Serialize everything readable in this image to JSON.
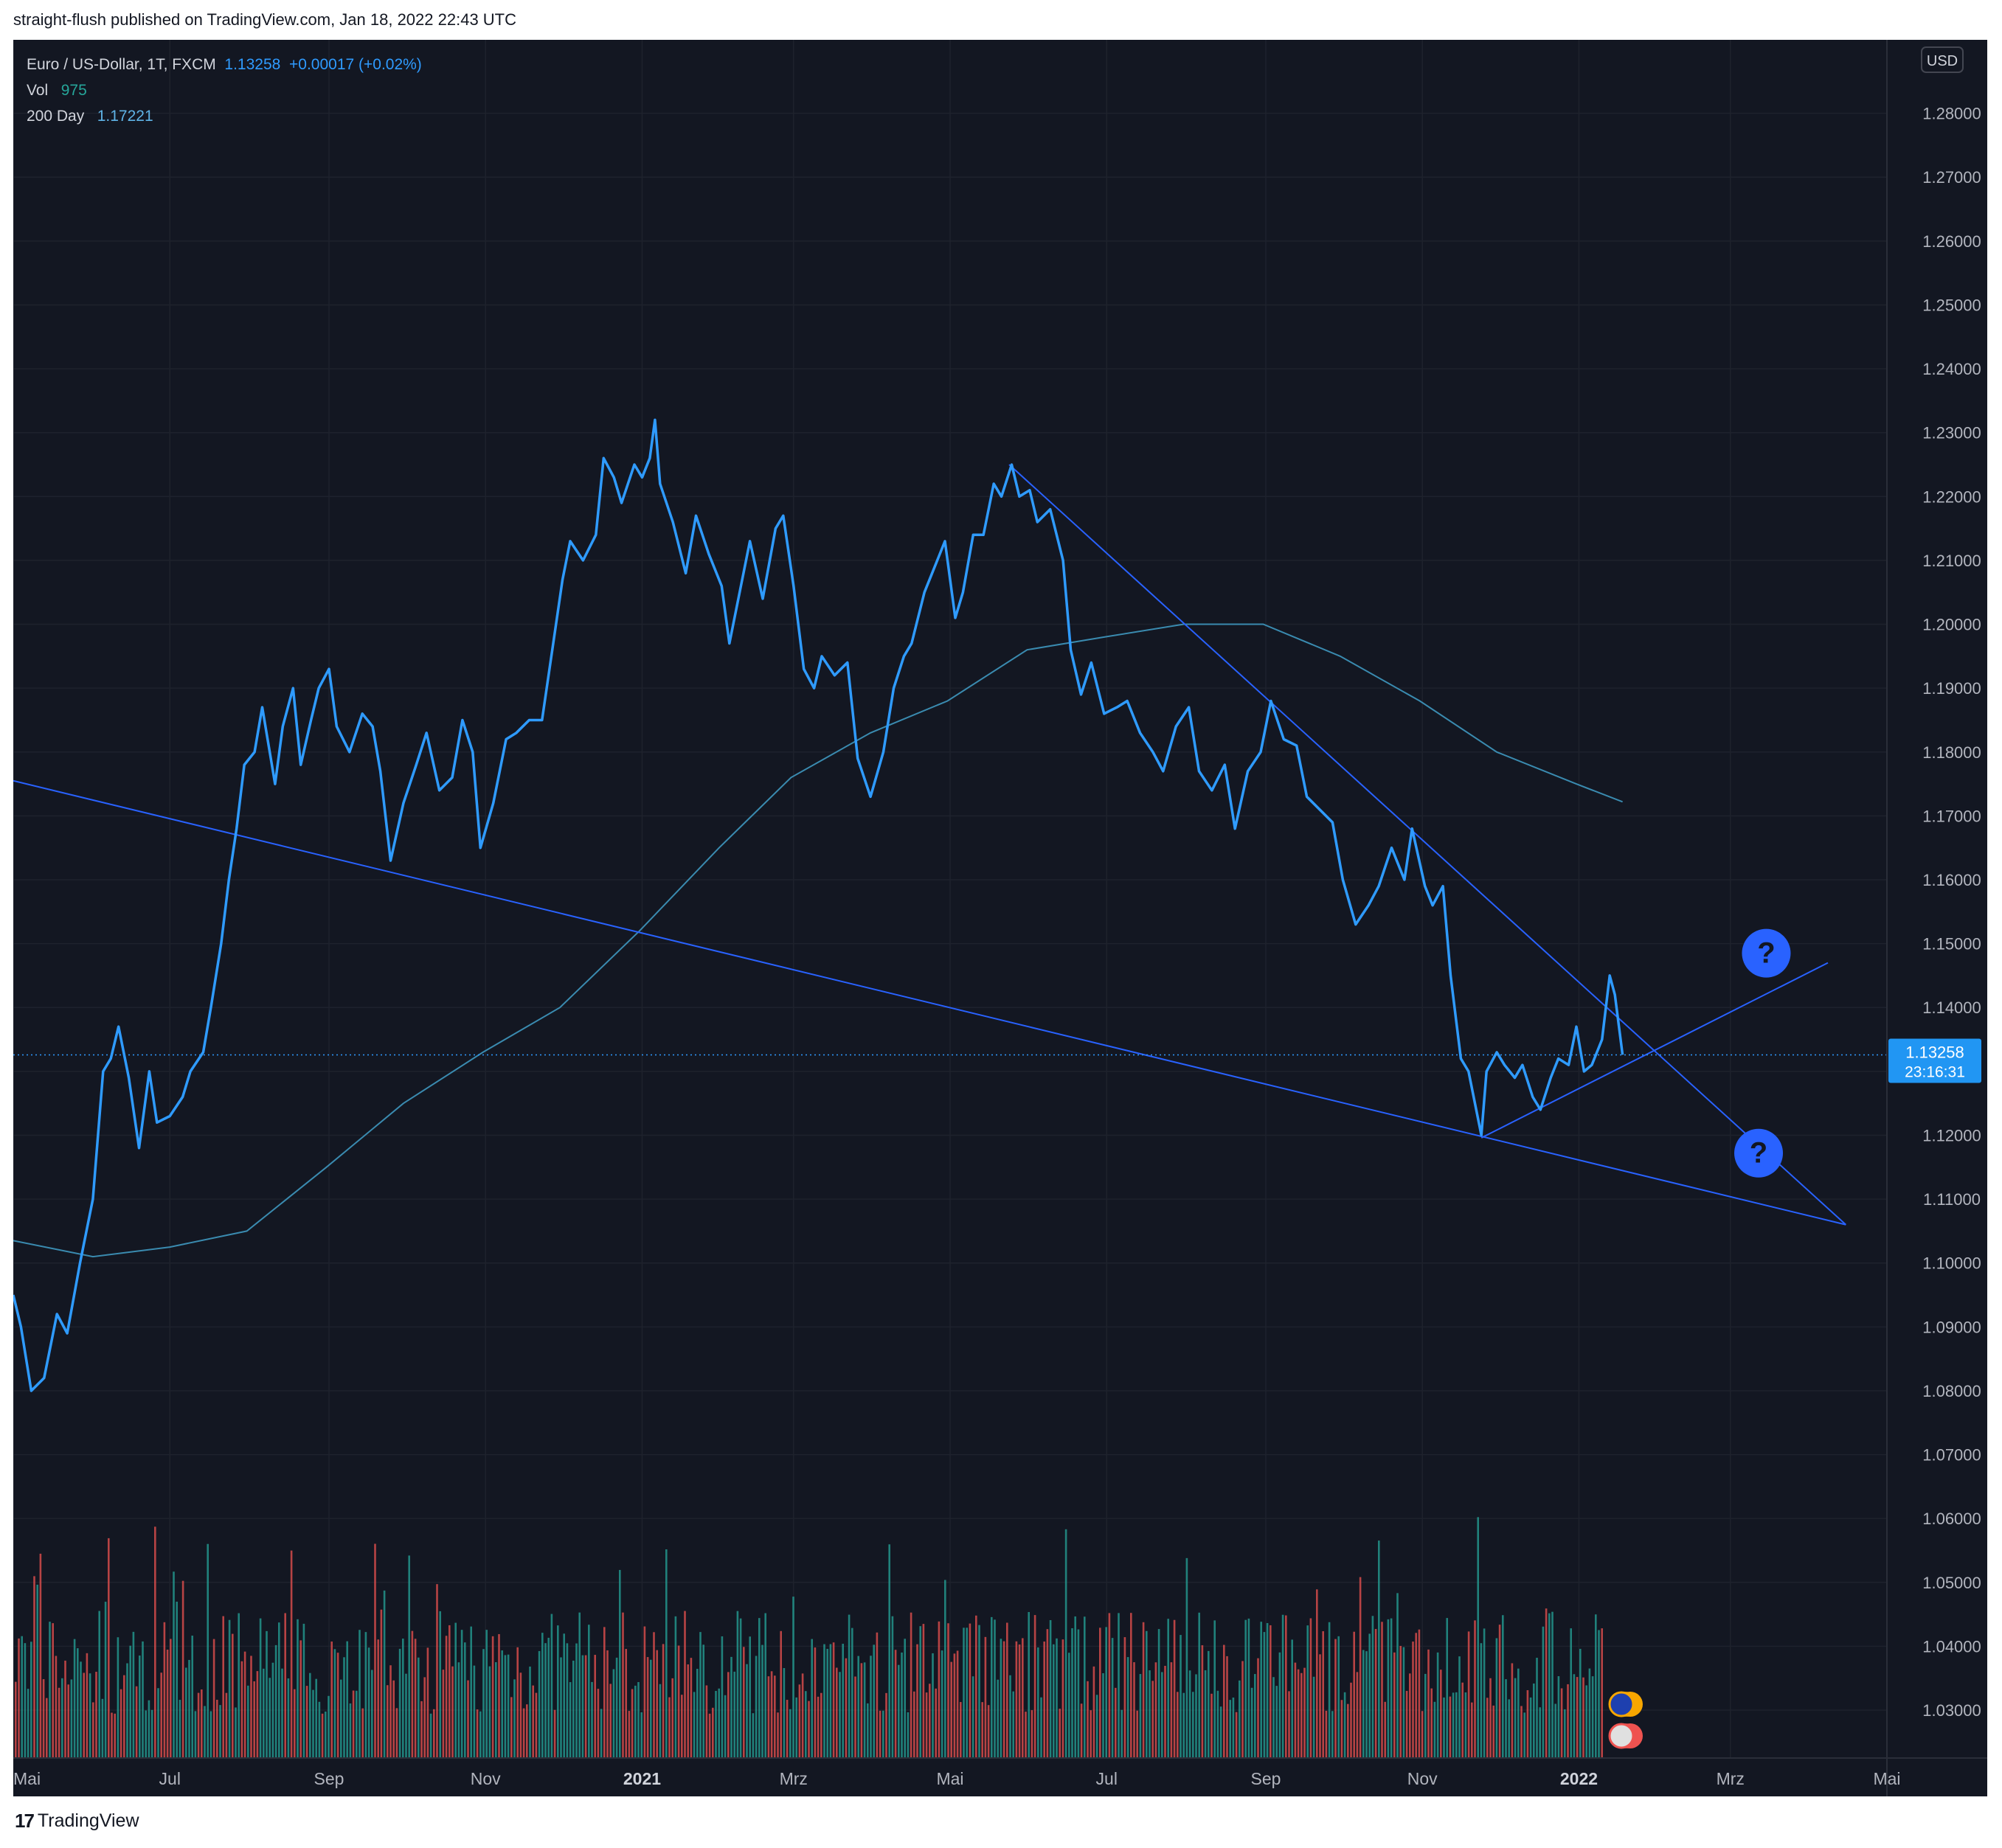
{
  "header": {
    "published": "straight-flush published on TradingView.com, Jan 18, 2022 22:43 UTC"
  },
  "legend": {
    "symbol": "Euro / US-Dollar, 1T, FXCM",
    "price": "1.13258",
    "change": "+0.00017 (+0.02%)",
    "vol_label": "Vol",
    "vol_value": "975",
    "ma_label": "200 Day",
    "ma_value": "1.17221"
  },
  "price_axis": {
    "currency": "USD",
    "last_price": "1.13258",
    "countdown": "23:16:31"
  },
  "footer": {
    "brand": "TradingView"
  },
  "colors": {
    "background": "#131722",
    "price_line": "#2f9bff",
    "ma_line": "#3a8bb0",
    "trend_lines": "#2962ff",
    "vol_up": "#26a69a",
    "vol_down": "#ef5350",
    "axis_text": "#b2b5be"
  },
  "chart_data": {
    "type": "line",
    "ylim": [
      1.0225,
      1.2915
    ],
    "y_ticks": [
      "1.28000",
      "1.27000",
      "1.26000",
      "1.25000",
      "1.24000",
      "1.23000",
      "1.22000",
      "1.21000",
      "1.20000",
      "1.19000",
      "1.18000",
      "1.17000",
      "1.16000",
      "1.15000",
      "1.14000",
      "1.13000",
      "1.12000",
      "1.11000",
      "1.10000",
      "1.09000",
      "1.08000",
      "1.07000",
      "1.06000",
      "1.05000",
      "1.04000",
      "1.03000"
    ],
    "x_ticks": [
      {
        "label": "Mai",
        "bold": false,
        "date": "2020-05-01"
      },
      {
        "label": "Jul",
        "bold": false,
        "date": "2020-07-01"
      },
      {
        "label": "Sep",
        "bold": false,
        "date": "2020-09-01"
      },
      {
        "label": "Nov",
        "bold": false,
        "date": "2020-11-01"
      },
      {
        "label": "2021",
        "bold": true,
        "date": "2021-01-01"
      },
      {
        "label": "Mrz",
        "bold": false,
        "date": "2021-03-01"
      },
      {
        "label": "Mai",
        "bold": false,
        "date": "2021-05-01"
      },
      {
        "label": "Jul",
        "bold": false,
        "date": "2021-07-01"
      },
      {
        "label": "Sep",
        "bold": false,
        "date": "2021-09-01"
      },
      {
        "label": "Nov",
        "bold": false,
        "date": "2021-11-01"
      },
      {
        "label": "2022",
        "bold": true,
        "date": "2022-01-01"
      },
      {
        "label": "Mrz",
        "bold": false,
        "date": "2022-03-01"
      },
      {
        "label": "Mai",
        "bold": false,
        "date": "2022-05-01"
      }
    ],
    "series": [
      {
        "name": "Euro / US-Dollar",
        "points": [
          [
            "2020-05-01",
            1.095
          ],
          [
            "2020-05-04",
            1.09
          ],
          [
            "2020-05-08",
            1.08
          ],
          [
            "2020-05-13",
            1.082
          ],
          [
            "2020-05-18",
            1.092
          ],
          [
            "2020-05-22",
            1.089
          ],
          [
            "2020-05-27",
            1.1
          ],
          [
            "2020-06-01",
            1.11
          ],
          [
            "2020-06-05",
            1.13
          ],
          [
            "2020-06-08",
            1.132
          ],
          [
            "2020-06-11",
            1.137
          ],
          [
            "2020-06-15",
            1.129
          ],
          [
            "2020-06-19",
            1.118
          ],
          [
            "2020-06-23",
            1.13
          ],
          [
            "2020-06-26",
            1.122
          ],
          [
            "2020-07-01",
            1.123
          ],
          [
            "2020-07-06",
            1.126
          ],
          [
            "2020-07-09",
            1.13
          ],
          [
            "2020-07-14",
            1.133
          ],
          [
            "2020-07-17",
            1.14
          ],
          [
            "2020-07-21",
            1.15
          ],
          [
            "2020-07-24",
            1.16
          ],
          [
            "2020-07-27",
            1.168
          ],
          [
            "2020-07-30",
            1.178
          ],
          [
            "2020-08-03",
            1.18
          ],
          [
            "2020-08-06",
            1.187
          ],
          [
            "2020-08-11",
            1.175
          ],
          [
            "2020-08-14",
            1.184
          ],
          [
            "2020-08-18",
            1.19
          ],
          [
            "2020-08-21",
            1.178
          ],
          [
            "2020-08-25",
            1.185
          ],
          [
            "2020-08-28",
            1.19
          ],
          [
            "2020-09-01",
            1.193
          ],
          [
            "2020-09-04",
            1.184
          ],
          [
            "2020-09-09",
            1.18
          ],
          [
            "2020-09-14",
            1.186
          ],
          [
            "2020-09-18",
            1.184
          ],
          [
            "2020-09-21",
            1.177
          ],
          [
            "2020-09-25",
            1.163
          ],
          [
            "2020-09-30",
            1.172
          ],
          [
            "2020-10-05",
            1.178
          ],
          [
            "2020-10-09",
            1.183
          ],
          [
            "2020-10-14",
            1.174
          ],
          [
            "2020-10-19",
            1.176
          ],
          [
            "2020-10-23",
            1.185
          ],
          [
            "2020-10-27",
            1.18
          ],
          [
            "2020-10-30",
            1.165
          ],
          [
            "2020-11-04",
            1.172
          ],
          [
            "2020-11-09",
            1.182
          ],
          [
            "2020-11-13",
            1.183
          ],
          [
            "2020-11-18",
            1.185
          ],
          [
            "2020-11-23",
            1.185
          ],
          [
            "2020-11-27",
            1.196
          ],
          [
            "2020-12-01",
            1.207
          ],
          [
            "2020-12-04",
            1.213
          ],
          [
            "2020-12-09",
            1.21
          ],
          [
            "2020-12-14",
            1.214
          ],
          [
            "2020-12-17",
            1.226
          ],
          [
            "2020-12-21",
            1.223
          ],
          [
            "2020-12-24",
            1.219
          ],
          [
            "2020-12-29",
            1.225
          ],
          [
            "2021-01-01",
            1.223
          ],
          [
            "2021-01-04",
            1.226
          ],
          [
            "2021-01-06",
            1.232
          ],
          [
            "2021-01-08",
            1.222
          ],
          [
            "2021-01-13",
            1.216
          ],
          [
            "2021-01-18",
            1.208
          ],
          [
            "2021-01-22",
            1.217
          ],
          [
            "2021-01-27",
            1.211
          ],
          [
            "2021-02-01",
            1.206
          ],
          [
            "2021-02-04",
            1.197
          ],
          [
            "2021-02-08",
            1.205
          ],
          [
            "2021-02-12",
            1.213
          ],
          [
            "2021-02-17",
            1.204
          ],
          [
            "2021-02-22",
            1.215
          ],
          [
            "2021-02-25",
            1.217
          ],
          [
            "2021-03-01",
            1.206
          ],
          [
            "2021-03-05",
            1.193
          ],
          [
            "2021-03-09",
            1.19
          ],
          [
            "2021-03-12",
            1.195
          ],
          [
            "2021-03-17",
            1.192
          ],
          [
            "2021-03-22",
            1.194
          ],
          [
            "2021-03-26",
            1.179
          ],
          [
            "2021-03-31",
            1.173
          ],
          [
            "2021-04-05",
            1.18
          ],
          [
            "2021-04-09",
            1.19
          ],
          [
            "2021-04-13",
            1.195
          ],
          [
            "2021-04-16",
            1.197
          ],
          [
            "2021-04-21",
            1.205
          ],
          [
            "2021-04-26",
            1.21
          ],
          [
            "2021-04-29",
            1.213
          ],
          [
            "2021-05-03",
            1.201
          ],
          [
            "2021-05-06",
            1.205
          ],
          [
            "2021-05-10",
            1.214
          ],
          [
            "2021-05-14",
            1.214
          ],
          [
            "2021-05-18",
            1.222
          ],
          [
            "2021-05-21",
            1.22
          ],
          [
            "2021-05-25",
            1.225
          ],
          [
            "2021-05-28",
            1.22
          ],
          [
            "2021-06-01",
            1.221
          ],
          [
            "2021-06-04",
            1.216
          ],
          [
            "2021-06-09",
            1.218
          ],
          [
            "2021-06-14",
            1.21
          ],
          [
            "2021-06-17",
            1.196
          ],
          [
            "2021-06-21",
            1.189
          ],
          [
            "2021-06-25",
            1.194
          ],
          [
            "2021-06-30",
            1.186
          ],
          [
            "2021-07-05",
            1.187
          ],
          [
            "2021-07-09",
            1.188
          ],
          [
            "2021-07-14",
            1.183
          ],
          [
            "2021-07-19",
            1.18
          ],
          [
            "2021-07-23",
            1.177
          ],
          [
            "2021-07-28",
            1.184
          ],
          [
            "2021-08-02",
            1.187
          ],
          [
            "2021-08-06",
            1.177
          ],
          [
            "2021-08-11",
            1.174
          ],
          [
            "2021-08-16",
            1.178
          ],
          [
            "2021-08-20",
            1.168
          ],
          [
            "2021-08-25",
            1.177
          ],
          [
            "2021-08-30",
            1.18
          ],
          [
            "2021-09-03",
            1.188
          ],
          [
            "2021-09-08",
            1.182
          ],
          [
            "2021-09-13",
            1.181
          ],
          [
            "2021-09-17",
            1.173
          ],
          [
            "2021-09-22",
            1.171
          ],
          [
            "2021-09-27",
            1.169
          ],
          [
            "2021-10-01",
            1.16
          ],
          [
            "2021-10-06",
            1.153
          ],
          [
            "2021-10-11",
            1.156
          ],
          [
            "2021-10-15",
            1.159
          ],
          [
            "2021-10-20",
            1.165
          ],
          [
            "2021-10-25",
            1.16
          ],
          [
            "2021-10-28",
            1.168
          ],
          [
            "2021-11-02",
            1.159
          ],
          [
            "2021-11-05",
            1.156
          ],
          [
            "2021-11-09",
            1.159
          ],
          [
            "2021-11-12",
            1.145
          ],
          [
            "2021-11-16",
            1.132
          ],
          [
            "2021-11-19",
            1.13
          ],
          [
            "2021-11-24",
            1.12
          ],
          [
            "2021-11-26",
            1.13
          ],
          [
            "2021-11-30",
            1.133
          ],
          [
            "2021-12-03",
            1.131
          ],
          [
            "2021-12-07",
            1.129
          ],
          [
            "2021-12-10",
            1.131
          ],
          [
            "2021-12-14",
            1.126
          ],
          [
            "2021-12-17",
            1.124
          ],
          [
            "2021-12-21",
            1.129
          ],
          [
            "2021-12-24",
            1.132
          ],
          [
            "2021-12-28",
            1.131
          ],
          [
            "2021-12-31",
            1.137
          ],
          [
            "2022-01-03",
            1.13
          ],
          [
            "2022-01-06",
            1.131
          ],
          [
            "2022-01-10",
            1.135
          ],
          [
            "2022-01-13",
            1.145
          ],
          [
            "2022-01-15",
            1.142
          ],
          [
            "2022-01-18",
            1.1326
          ]
        ]
      },
      {
        "name": "200 Day",
        "points": [
          [
            "2020-05-01",
            1.1035
          ],
          [
            "2020-06-01",
            1.101
          ],
          [
            "2020-07-01",
            1.1025
          ],
          [
            "2020-07-31",
            1.105
          ],
          [
            "2020-08-31",
            1.115
          ],
          [
            "2020-09-30",
            1.125
          ],
          [
            "2020-10-31",
            1.133
          ],
          [
            "2020-11-30",
            1.14
          ],
          [
            "2020-12-31",
            1.152
          ],
          [
            "2021-01-31",
            1.165
          ],
          [
            "2021-02-28",
            1.176
          ],
          [
            "2021-03-31",
            1.183
          ],
          [
            "2021-04-30",
            1.188
          ],
          [
            "2021-05-31",
            1.196
          ],
          [
            "2021-06-30",
            1.198
          ],
          [
            "2021-07-31",
            1.2
          ],
          [
            "2021-08-31",
            1.2
          ],
          [
            "2021-09-30",
            1.195
          ],
          [
            "2021-10-31",
            1.188
          ],
          [
            "2021-11-30",
            1.18
          ],
          [
            "2021-12-31",
            1.175
          ],
          [
            "2022-01-18",
            1.1722
          ]
        ]
      }
    ],
    "trend_lines": [
      {
        "from": [
          "2020-05-01",
          1.1755
        ],
        "to": [
          "2022-04-15",
          1.106
        ]
      },
      {
        "from": [
          "2021-05-24",
          1.225
        ],
        "to": [
          "2022-04-15",
          1.106
        ]
      },
      {
        "from": [
          "2021-11-24",
          1.1196
        ],
        "to": [
          "2022-04-08",
          1.147
        ]
      }
    ],
    "annotations": [
      {
        "text": "?",
        "x": "2022-03-15",
        "y": 1.1485
      },
      {
        "text": "?",
        "x": "2022-03-12",
        "y": 1.1172
      }
    ]
  }
}
